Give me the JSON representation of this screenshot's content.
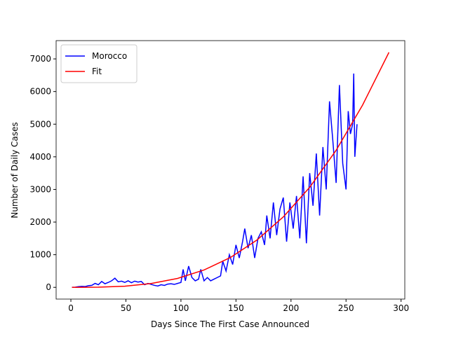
{
  "chart_data": {
    "type": "line",
    "xlabel": "Days Since The First Case Announced",
    "ylabel": "Number of Daily Cases",
    "xlim": [
      -13.4,
      303.4
    ],
    "ylim": [
      -360,
      7560
    ],
    "xticks": [
      0,
      50,
      100,
      150,
      200,
      250,
      300
    ],
    "yticks": [
      0,
      1000,
      2000,
      3000,
      4000,
      5000,
      6000,
      7000
    ],
    "legend": "upper left",
    "series": [
      {
        "name": "Morocco",
        "color": "#0000ff",
        "x": [
          1,
          4,
          7,
          10,
          13,
          16,
          19,
          22,
          25,
          28,
          31,
          34,
          37,
          40,
          43,
          46,
          49,
          52,
          55,
          58,
          61,
          64,
          67,
          70,
          73,
          76,
          79,
          82,
          85,
          88,
          91,
          94,
          97,
          100,
          102,
          104,
          107,
          110,
          113,
          116,
          118,
          121,
          124,
          127,
          130,
          133,
          136,
          138,
          141,
          144,
          147,
          150,
          153,
          156,
          158,
          161,
          164,
          167,
          170,
          173,
          176,
          178,
          181,
          184,
          187,
          190,
          193,
          196,
          199,
          202,
          205,
          208,
          211,
          214,
          217,
          220,
          223,
          226,
          229,
          232,
          235,
          238,
          241,
          244,
          247,
          250,
          252,
          254,
          256,
          257,
          258,
          260
        ],
        "values": [
          1,
          5,
          20,
          30,
          25,
          50,
          60,
          120,
          80,
          180,
          110,
          150,
          200,
          280,
          170,
          190,
          150,
          200,
          140,
          190,
          160,
          180,
          80,
          120,
          90,
          60,
          40,
          80,
          60,
          100,
          110,
          90,
          120,
          150,
          550,
          200,
          650,
          300,
          200,
          250,
          550,
          200,
          300,
          200,
          250,
          300,
          350,
          800,
          500,
          1000,
          700,
          1300,
          900,
          1400,
          1800,
          1200,
          1600,
          900,
          1500,
          1700,
          1300,
          2200,
          1500,
          2600,
          1600,
          2400,
          2750,
          1400,
          2600,
          1800,
          2800,
          1500,
          3400,
          1350,
          3500,
          2500,
          4100,
          2200,
          4300,
          3000,
          5700,
          4500,
          3200,
          6200,
          3800,
          3000,
          5400,
          4700,
          5000,
          6550,
          4000,
          5000
        ]
      },
      {
        "name": "Fit",
        "color": "#ff0000",
        "x": [
          1,
          25,
          49,
          73,
          97,
          121,
          145,
          169,
          193,
          217,
          241,
          265,
          289
        ],
        "values": [
          0,
          5,
          35,
          117,
          274,
          531,
          915,
          1448,
          2157,
          3066,
          4199,
          5583,
          7200
        ]
      }
    ]
  }
}
